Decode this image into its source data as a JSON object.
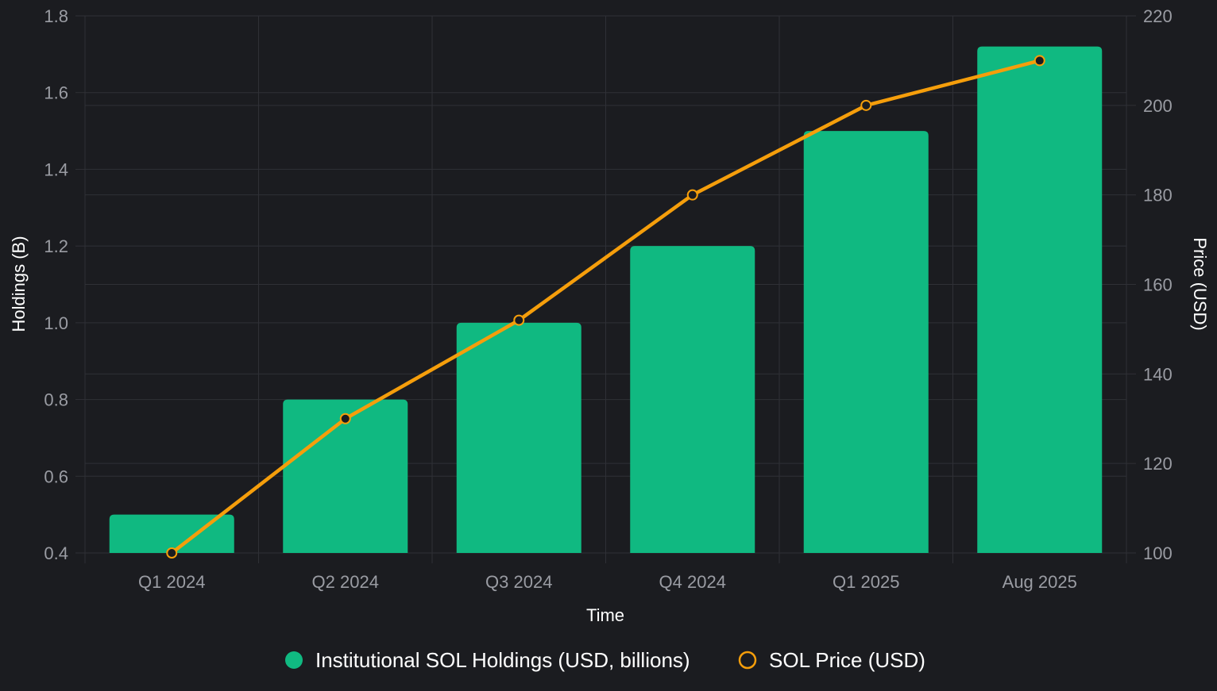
{
  "chart_data": {
    "type": "bar",
    "categories": [
      "Q1 2024",
      "Q2 2024",
      "Q3 2024",
      "Q4 2024",
      "Q1 2025",
      "Aug 2025"
    ],
    "series": [
      {
        "name": "Institutional SOL Holdings (USD, billions)",
        "kind": "bar",
        "axis": "left",
        "color": "#10b981",
        "values": [
          0.5,
          0.8,
          1.0,
          1.2,
          1.5,
          1.72
        ]
      },
      {
        "name": "SOL Price (USD)",
        "kind": "line",
        "axis": "right",
        "color": "#f59e0b",
        "values": [
          100,
          130,
          152,
          180,
          200,
          210
        ]
      }
    ],
    "xlabel": "Time",
    "ylabel": "Holdings (B)",
    "y2label": "Price (USD)",
    "ylim": [
      0.4,
      1.8
    ],
    "y2lim": [
      100,
      220
    ],
    "yticks": [
      "0.4",
      "0.6",
      "0.8",
      "1.0",
      "1.2",
      "1.4",
      "1.6",
      "1.8"
    ],
    "y2ticks": [
      "100",
      "120",
      "140",
      "160",
      "180",
      "200",
      "220"
    ],
    "grid": true,
    "legend": "bottom-center",
    "theme": {
      "background": "#1b1c20",
      "grid": "#2f3036",
      "tick_text": "#9a9ca3",
      "title_text": "#ffffff"
    }
  }
}
